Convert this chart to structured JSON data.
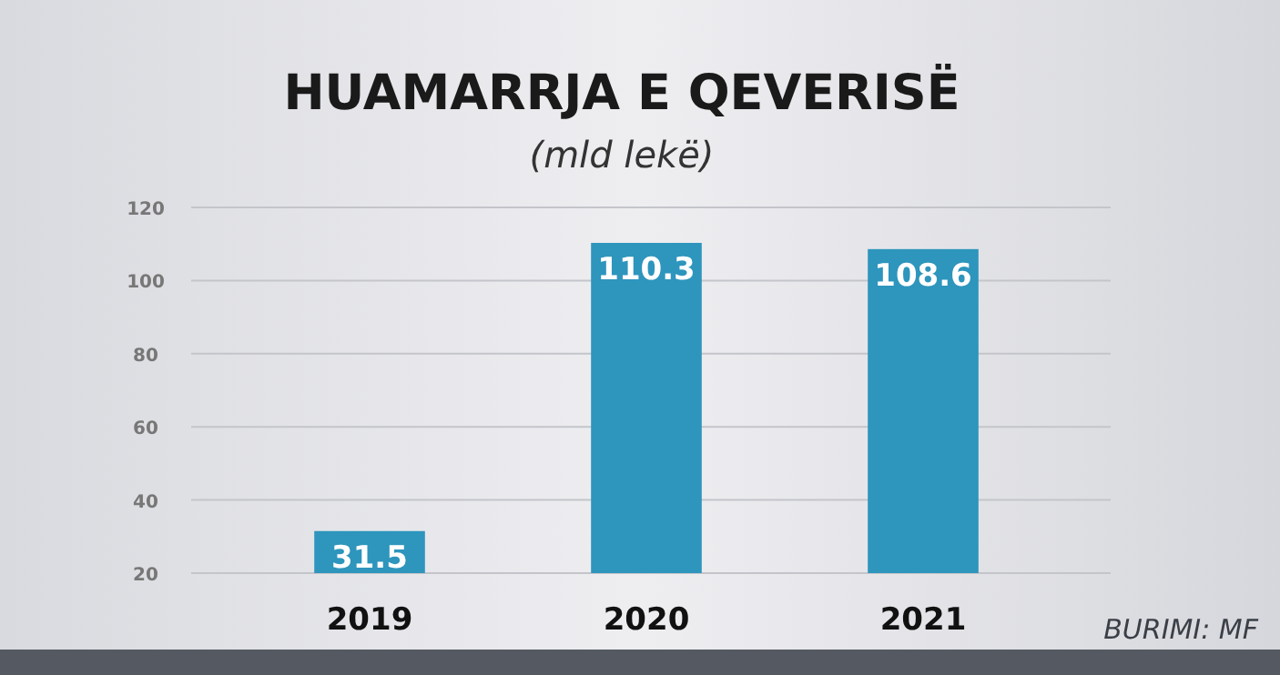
{
  "chart_data": {
    "type": "bar",
    "title": "HUAMARRJA E QEVERISË",
    "subtitle": "(mld lekë)",
    "categories": [
      "2019",
      "2020",
      "2021"
    ],
    "values": [
      31.5,
      110.3,
      108.6
    ],
    "color": "#2e95bd",
    "ylim": [
      20,
      120
    ],
    "yticks": [
      20,
      40,
      60,
      80,
      100,
      120
    ],
    "grid": "y",
    "data_labels": true,
    "annotations": [
      "BURIMI: MF"
    ]
  }
}
